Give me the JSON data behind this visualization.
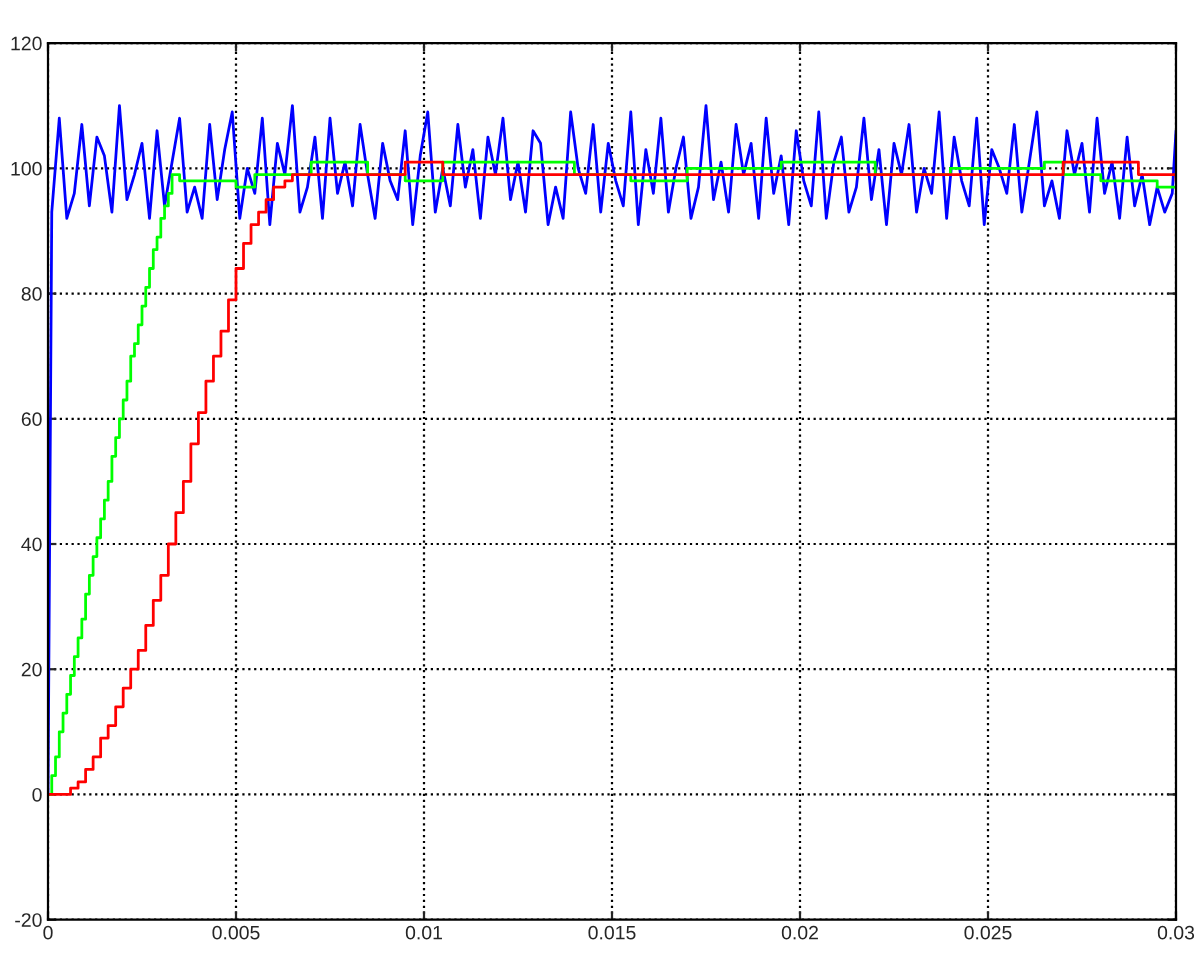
{
  "chart_data": {
    "type": "line",
    "xlim": [
      0,
      0.03
    ],
    "ylim": [
      -20,
      120
    ],
    "xticks": [
      0,
      0.005,
      0.01,
      0.015,
      0.02,
      0.025,
      0.03
    ],
    "yticks": [
      -20,
      0,
      20,
      40,
      60,
      80,
      100,
      120
    ],
    "grid": true,
    "line_style": "solid",
    "marker": "none",
    "series": [
      {
        "color": "#0000ff",
        "x": [
          0,
          0.0001,
          0.0003,
          0.0005,
          0.0007,
          0.0009,
          0.0011,
          0.0013,
          0.0015,
          0.0017,
          0.0019,
          0.0021,
          0.0023,
          0.0025,
          0.0027,
          0.0029,
          0.0031,
          0.0033,
          0.0035,
          0.0037,
          0.0039,
          0.0041,
          0.0043,
          0.0045,
          0.0047,
          0.0049,
          0.0051,
          0.0053,
          0.0055,
          0.0057,
          0.0059,
          0.0061,
          0.0063,
          0.0065,
          0.0067,
          0.0069,
          0.0071,
          0.0073,
          0.0075,
          0.0077,
          0.0079,
          0.0081,
          0.0083,
          0.0085,
          0.0087,
          0.0089,
          0.0091,
          0.0093,
          0.0095,
          0.0097,
          0.0099,
          0.0101,
          0.0103,
          0.0105,
          0.0107,
          0.0109,
          0.0111,
          0.0113,
          0.0115,
          0.0117,
          0.0119,
          0.0121,
          0.0123,
          0.0125,
          0.0127,
          0.0129,
          0.0131,
          0.0133,
          0.0135,
          0.0137,
          0.0139,
          0.0141,
          0.0143,
          0.0145,
          0.0147,
          0.0149,
          0.0151,
          0.0153,
          0.0155,
          0.0157,
          0.0159,
          0.0161,
          0.0163,
          0.0165,
          0.0167,
          0.0169,
          0.0171,
          0.0173,
          0.0175,
          0.0177,
          0.0179,
          0.0181,
          0.0183,
          0.0185,
          0.0187,
          0.0189,
          0.0191,
          0.0193,
          0.0195,
          0.0197,
          0.0199,
          0.0201,
          0.0203,
          0.0205,
          0.0207,
          0.0209,
          0.0211,
          0.0213,
          0.0215,
          0.0217,
          0.0219,
          0.0221,
          0.0223,
          0.0225,
          0.0227,
          0.0229,
          0.0231,
          0.0233,
          0.0235,
          0.0237,
          0.0239,
          0.0241,
          0.0243,
          0.0245,
          0.0247,
          0.0249,
          0.0251,
          0.0253,
          0.0255,
          0.0257,
          0.0259,
          0.0261,
          0.0263,
          0.0265,
          0.0267,
          0.0269,
          0.0271,
          0.0273,
          0.0275,
          0.0277,
          0.0279,
          0.0281,
          0.0283,
          0.0285,
          0.0287,
          0.0289,
          0.0291,
          0.0293,
          0.0295,
          0.0297,
          0.0299,
          0.03
        ],
        "values": [
          0,
          93,
          108,
          92,
          96,
          107,
          94,
          105,
          102,
          93,
          110,
          95,
          99,
          104,
          92,
          106,
          94,
          101,
          108,
          93,
          97,
          92,
          107,
          95,
          103,
          109,
          92,
          100,
          96,
          108,
          91,
          104,
          99,
          110,
          93,
          97,
          105,
          92,
          108,
          96,
          101,
          94,
          107,
          99,
          92,
          104,
          98,
          95,
          106,
          91,
          102,
          109,
          93,
          100,
          94,
          107,
          97,
          103,
          92,
          105,
          99,
          108,
          95,
          101,
          93,
          106,
          104,
          91,
          97,
          92,
          109,
          100,
          96,
          107,
          93,
          104,
          98,
          94,
          109,
          91,
          103,
          96,
          108,
          93,
          100,
          105,
          92,
          97,
          110,
          95,
          101,
          93,
          107,
          99,
          104,
          92,
          108,
          96,
          102,
          91,
          106,
          98,
          94,
          109,
          92,
          101,
          105,
          93,
          97,
          108,
          95,
          103,
          91,
          104,
          99,
          107,
          93,
          100,
          96,
          109,
          92,
          105,
          98,
          94,
          108,
          91,
          103,
          100,
          96,
          107,
          93,
          101,
          109,
          94,
          98,
          92,
          106,
          99,
          104,
          93,
          108,
          96,
          101,
          92,
          105,
          94,
          99,
          91,
          97,
          93,
          96,
          106
        ]
      },
      {
        "type": "step",
        "color": "#00ff00",
        "x": [
          0,
          0.0001,
          0.0002,
          0.0003,
          0.0004,
          0.0005,
          0.0006,
          0.0007,
          0.0008,
          0.0009,
          0.001,
          0.0011,
          0.0012,
          0.0013,
          0.0014,
          0.0015,
          0.0016,
          0.0017,
          0.0018,
          0.0019,
          0.002,
          0.0021,
          0.0022,
          0.0023,
          0.0024,
          0.0025,
          0.0026,
          0.0027,
          0.0028,
          0.0029,
          0.003,
          0.0031,
          0.0032,
          0.0033,
          0.0035,
          0.005,
          0.0055,
          0.007,
          0.0085,
          0.0095,
          0.0105,
          0.014,
          0.0155,
          0.017,
          0.0195,
          0.022,
          0.024,
          0.0265,
          0.027,
          0.028,
          0.0295,
          0.03
        ],
        "values": [
          0,
          3,
          6,
          10,
          13,
          16,
          19,
          22,
          25,
          28,
          32,
          35,
          38,
          41,
          44,
          47,
          50,
          54,
          57,
          60,
          63,
          66,
          70,
          72,
          75,
          78,
          81,
          84,
          87,
          89,
          92,
          94,
          96,
          99,
          98,
          97,
          99,
          101,
          99,
          98,
          101,
          99,
          98,
          100,
          101,
          99,
          100,
          101,
          99,
          98,
          97,
          97
        ]
      },
      {
        "type": "step",
        "color": "#ff0000",
        "x": [
          0,
          0.0005,
          0.0006,
          0.0008,
          0.001,
          0.0012,
          0.0014,
          0.0016,
          0.0018,
          0.002,
          0.0022,
          0.0024,
          0.0026,
          0.0028,
          0.003,
          0.0032,
          0.0034,
          0.0036,
          0.0038,
          0.004,
          0.0042,
          0.0044,
          0.0046,
          0.0048,
          0.005,
          0.0052,
          0.0054,
          0.0056,
          0.0058,
          0.006,
          0.0063,
          0.0065,
          0.0095,
          0.0105,
          0.027,
          0.029,
          0.03
        ],
        "values": [
          0,
          0,
          1,
          2,
          4,
          6,
          9,
          11,
          14,
          17,
          20,
          23,
          27,
          31,
          35,
          40,
          45,
          50,
          56,
          61,
          66,
          70,
          74,
          79,
          84,
          88,
          91,
          93,
          95,
          97,
          98,
          99,
          101,
          99,
          101,
          99,
          98
        ]
      }
    ]
  }
}
